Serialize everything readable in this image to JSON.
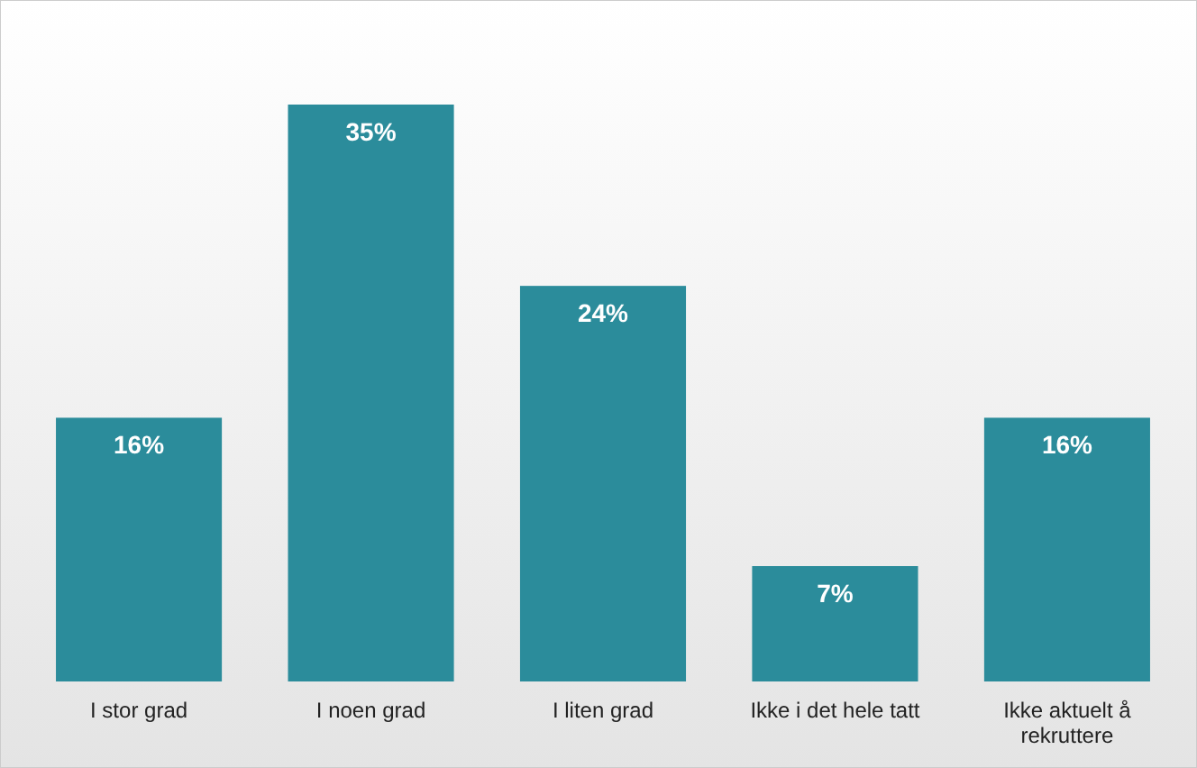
{
  "chart_data": {
    "type": "bar",
    "categories": [
      "I stor grad",
      "I noen grad",
      "I liten grad",
      "Ikke i det hele tatt",
      "Ikke aktuelt å rekruttere"
    ],
    "values": [
      16,
      35,
      24,
      7,
      16
    ],
    "color": "#2b8c9b",
    "value_labels": [
      "16%",
      "35%",
      "24%",
      "7%",
      "16%"
    ]
  }
}
